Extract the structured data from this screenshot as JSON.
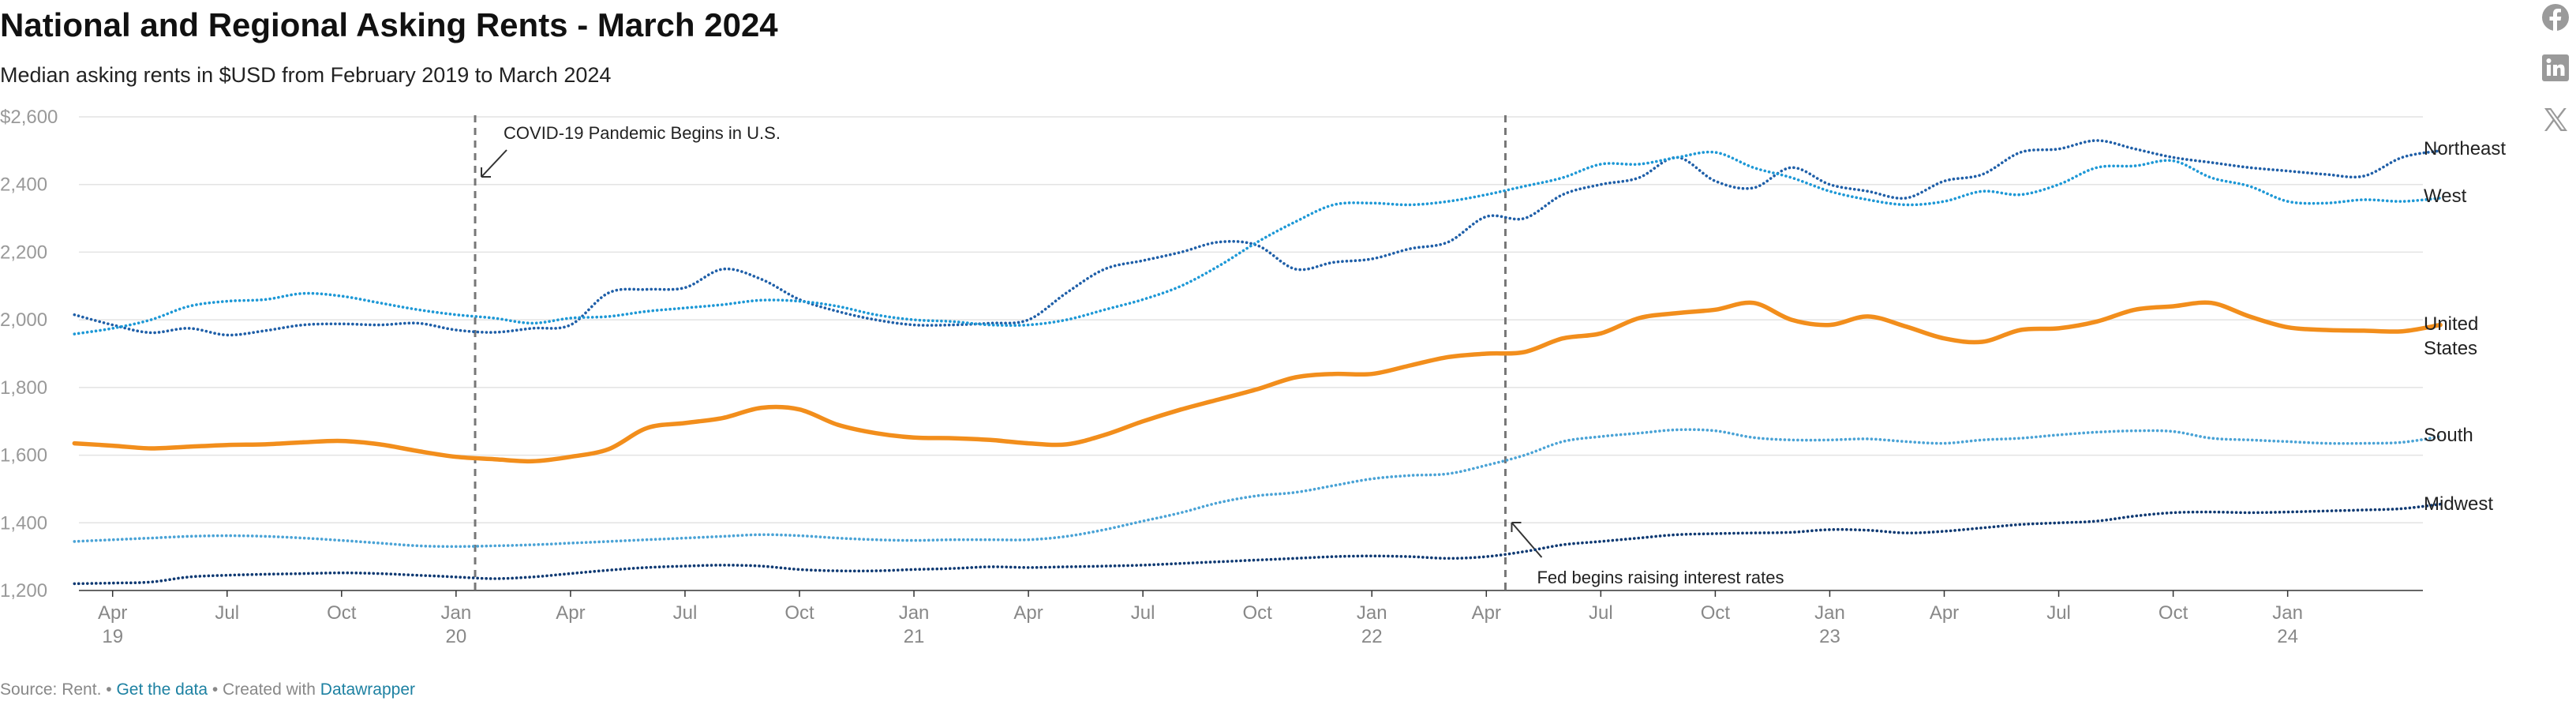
{
  "header": {
    "title": "National and Regional Asking Rents - March 2024",
    "subtitle": "Median asking rents in $USD from February 2019 to March 2024"
  },
  "social": {
    "facebook_icon": "facebook-icon",
    "linkedin_icon": "linkedin-icon",
    "x_icon": "x-icon"
  },
  "footer": {
    "source": "Source: Rent.",
    "sep1": " • ",
    "get_data": "Get the data",
    "created": " • Created with ",
    "datawrapper": "Datawrapper"
  },
  "chart_data": {
    "type": "line",
    "title": "National and Regional Asking Rents - March 2024",
    "xlabel": "",
    "ylabel": "",
    "ylim": [
      1200,
      2600
    ],
    "yticks": [
      1200,
      1400,
      1600,
      1800,
      2000,
      2200,
      2400,
      2600
    ],
    "ytick_labels": [
      "1,200",
      "1,400",
      "1,600",
      "1,800",
      "2,000",
      "2,200",
      "2,400",
      "$2,600"
    ],
    "xlim": [
      1,
      62
    ],
    "xticks": [
      {
        "x": 3,
        "month": "Apr",
        "year": "19"
      },
      {
        "x": 6,
        "month": "Jul",
        "year": ""
      },
      {
        "x": 9,
        "month": "Oct",
        "year": ""
      },
      {
        "x": 12,
        "month": "Jan",
        "year": "20"
      },
      {
        "x": 15,
        "month": "Apr",
        "year": ""
      },
      {
        "x": 18,
        "month": "Jul",
        "year": ""
      },
      {
        "x": 21,
        "month": "Oct",
        "year": ""
      },
      {
        "x": 24,
        "month": "Jan",
        "year": "21"
      },
      {
        "x": 27,
        "month": "Apr",
        "year": ""
      },
      {
        "x": 30,
        "month": "Jul",
        "year": ""
      },
      {
        "x": 33,
        "month": "Oct",
        "year": ""
      },
      {
        "x": 36,
        "month": "Jan",
        "year": "22"
      },
      {
        "x": 39,
        "month": "Apr",
        "year": ""
      },
      {
        "x": 42,
        "month": "Jul",
        "year": ""
      },
      {
        "x": 45,
        "month": "Oct",
        "year": ""
      },
      {
        "x": 48,
        "month": "Jan",
        "year": "23"
      },
      {
        "x": 51,
        "month": "Apr",
        "year": ""
      },
      {
        "x": 54,
        "month": "Jul",
        "year": ""
      },
      {
        "x": 57,
        "month": "Oct",
        "year": ""
      },
      {
        "x": 60,
        "month": "Jan",
        "year": "24"
      }
    ],
    "x_note": "x = months since Dec 2018 (1 = Jan 2019); series start Feb 2019 (x=2) and end Mar 2024 (x=63)",
    "series": [
      {
        "name": "Northeast",
        "label_lines": [
          "Northeast"
        ],
        "color": "#1f5fa8",
        "style": "dotted",
        "values": [
          2015,
          1985,
          1962,
          1975,
          1955,
          1968,
          1985,
          1988,
          1985,
          1990,
          1970,
          1963,
          1975,
          1985,
          2080,
          2090,
          2095,
          2150,
          2120,
          2060,
          2025,
          2000,
          1985,
          1985,
          1990,
          2000,
          2080,
          2150,
          2175,
          2200,
          2230,
          2220,
          2150,
          2170,
          2180,
          2210,
          2230,
          2305,
          2300,
          2370,
          2400,
          2420,
          2480,
          2410,
          2390,
          2450,
          2400,
          2380,
          2360,
          2410,
          2430,
          2495,
          2505,
          2530,
          2505,
          2480,
          2465,
          2450,
          2440,
          2430,
          2425,
          2480,
          2500
        ]
      },
      {
        "name": "West",
        "label_lines": [
          "West"
        ],
        "color": "#1d98d6",
        "style": "dotted",
        "values": [
          1958,
          1975,
          2000,
          2040,
          2055,
          2060,
          2078,
          2070,
          2050,
          2030,
          2015,
          2005,
          1990,
          2005,
          2010,
          2025,
          2035,
          2045,
          2058,
          2055,
          2040,
          2015,
          2000,
          1995,
          1985,
          1985,
          2000,
          2030,
          2060,
          2100,
          2160,
          2230,
          2290,
          2340,
          2345,
          2340,
          2350,
          2370,
          2395,
          2420,
          2460,
          2460,
          2480,
          2495,
          2450,
          2420,
          2380,
          2355,
          2340,
          2350,
          2380,
          2370,
          2400,
          2450,
          2455,
          2470,
          2420,
          2395,
          2350,
          2345,
          2355,
          2350,
          2360
        ]
      },
      {
        "name": "United States",
        "label_lines": [
          "United",
          "States"
        ],
        "color": "#f28e1c",
        "style": "solid",
        "values": [
          1635,
          1628,
          1620,
          1625,
          1630,
          1632,
          1638,
          1642,
          1632,
          1612,
          1595,
          1588,
          1582,
          1595,
          1618,
          1680,
          1695,
          1710,
          1740,
          1735,
          1690,
          1665,
          1652,
          1650,
          1645,
          1635,
          1632,
          1660,
          1700,
          1735,
          1765,
          1795,
          1830,
          1840,
          1840,
          1865,
          1890,
          1900,
          1905,
          1945,
          1960,
          2005,
          2020,
          2030,
          2050,
          2000,
          1985,
          2010,
          1980,
          1945,
          1935,
          1970,
          1975,
          1995,
          2030,
          2040,
          2050,
          2010,
          1978,
          1970,
          1968,
          1966,
          1985
        ]
      },
      {
        "name": "South",
        "label_lines": [
          "South"
        ],
        "color": "#4aa3d6",
        "style": "dotted",
        "values": [
          1345,
          1350,
          1355,
          1360,
          1362,
          1360,
          1355,
          1348,
          1340,
          1332,
          1330,
          1332,
          1335,
          1340,
          1345,
          1350,
          1355,
          1360,
          1365,
          1362,
          1355,
          1350,
          1348,
          1350,
          1350,
          1350,
          1360,
          1380,
          1405,
          1430,
          1460,
          1480,
          1490,
          1510,
          1530,
          1540,
          1545,
          1570,
          1600,
          1640,
          1655,
          1665,
          1675,
          1672,
          1652,
          1645,
          1645,
          1648,
          1640,
          1635,
          1645,
          1650,
          1660,
          1668,
          1672,
          1670,
          1650,
          1645,
          1640,
          1635,
          1635,
          1638,
          1655
        ]
      },
      {
        "name": "Midwest",
        "label_lines": [
          "Midwest"
        ],
        "color": "#0f3a73",
        "style": "dotted",
        "values": [
          1220,
          1222,
          1225,
          1240,
          1245,
          1248,
          1250,
          1252,
          1250,
          1245,
          1240,
          1235,
          1240,
          1250,
          1260,
          1268,
          1272,
          1275,
          1272,
          1262,
          1258,
          1258,
          1262,
          1265,
          1270,
          1268,
          1270,
          1272,
          1275,
          1280,
          1285,
          1290,
          1295,
          1300,
          1302,
          1300,
          1295,
          1300,
          1315,
          1335,
          1345,
          1355,
          1365,
          1368,
          1370,
          1372,
          1380,
          1378,
          1370,
          1375,
          1385,
          1395,
          1400,
          1405,
          1420,
          1430,
          1432,
          1430,
          1432,
          1435,
          1438,
          1442,
          1455
        ]
      }
    ],
    "annotations": [
      {
        "text": "COVID-19 Pandemic Begins in U.S.",
        "x": 12.5
      },
      {
        "text": "Fed begins raising interest rates",
        "x": 39.5
      }
    ]
  }
}
